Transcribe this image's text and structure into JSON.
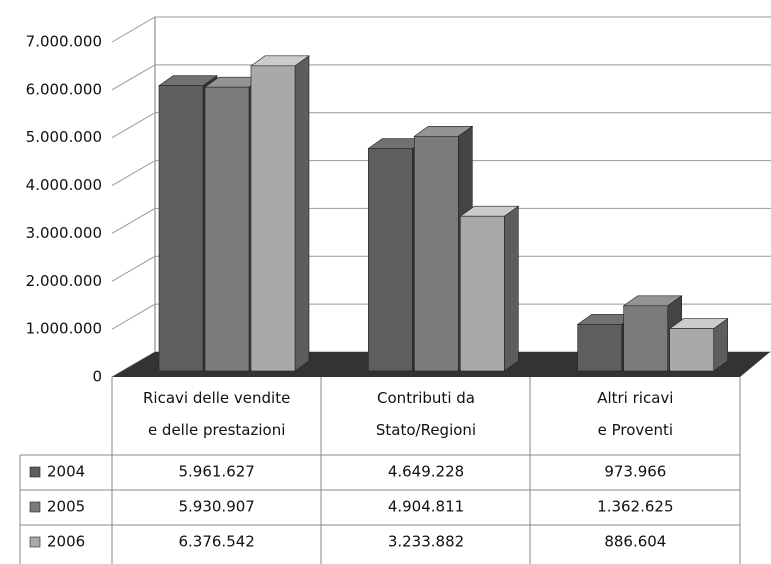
{
  "chart_data": {
    "type": "bar3d",
    "categories": [
      "Ricavi delle vendite e delle prestazioni",
      "Contributi da Stato/Regioni",
      "Altri ricavi e Proventi"
    ],
    "series": [
      {
        "name": "2004",
        "color": "#5e5e5e",
        "values": [
          5961627,
          4649228,
          973966
        ],
        "value_labels": [
          "5.961.627",
          "4.649.228",
          "973.966"
        ]
      },
      {
        "name": "2005",
        "color": "#7b7b7b",
        "values": [
          5930907,
          4904811,
          1362625
        ],
        "value_labels": [
          "5.930.907",
          "4.904.811",
          "1.362.625"
        ]
      },
      {
        "name": "2006",
        "color": "#a9a9a9",
        "values": [
          6376542,
          3233882,
          886604
        ],
        "value_labels": [
          "6.376.542",
          "3.233.882",
          "886.604"
        ]
      }
    ],
    "ylim": [
      0,
      7000000
    ],
    "yticks": [
      0,
      {
        "value": 1000000,
        "label": "1.000.000"
      },
      {
        "value": 2000000,
        "label": "2.000.000"
      },
      {
        "value": 3000000,
        "label": "3.000.000"
      },
      {
        "value": 4000000,
        "label": "4.000.000"
      },
      {
        "value": 5000000,
        "label": "5.000.000"
      },
      {
        "value": 6000000,
        "label": "6.000.000"
      },
      {
        "value": 7000000,
        "label": "7.000.000"
      }
    ],
    "grid": true,
    "legend": "table"
  }
}
